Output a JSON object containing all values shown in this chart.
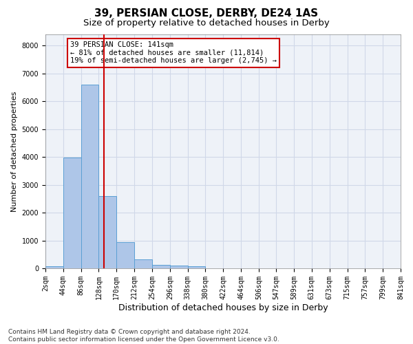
{
  "title": "39, PERSIAN CLOSE, DERBY, DE24 1AS",
  "subtitle": "Size of property relative to detached houses in Derby",
  "xlabel": "Distribution of detached houses by size in Derby",
  "ylabel": "Number of detached properties",
  "bin_edges": [
    2,
    44,
    86,
    128,
    170,
    212,
    254,
    296,
    338,
    380,
    422,
    464,
    506,
    547,
    589,
    631,
    673,
    715,
    757,
    799,
    841
  ],
  "counts": [
    70,
    3980,
    6600,
    2600,
    950,
    310,
    130,
    100,
    70,
    0,
    0,
    0,
    0,
    0,
    0,
    0,
    0,
    0,
    0,
    0
  ],
  "bar_color": "#aec6e8",
  "bar_edge_color": "#5a9fd4",
  "vline_x": 141,
  "vline_color": "#cc0000",
  "annotation_line1": "39 PERSIAN CLOSE: 141sqm",
  "annotation_line2": "← 81% of detached houses are smaller (11,814)",
  "annotation_line3": "19% of semi-detached houses are larger (2,745) →",
  "annotation_box_color": "white",
  "annotation_box_edge_color": "#cc0000",
  "ylim": [
    0,
    8400
  ],
  "yticks": [
    0,
    1000,
    2000,
    3000,
    4000,
    5000,
    6000,
    7000,
    8000
  ],
  "grid_color": "#d0d8e8",
  "background_color": "#eef2f8",
  "footer_text": "Contains HM Land Registry data © Crown copyright and database right 2024.\nContains public sector information licensed under the Open Government Licence v3.0.",
  "title_fontsize": 11,
  "subtitle_fontsize": 9.5,
  "xlabel_fontsize": 9,
  "ylabel_fontsize": 8,
  "tick_fontsize": 7,
  "annotation_fontsize": 7.5,
  "footer_fontsize": 6.5
}
